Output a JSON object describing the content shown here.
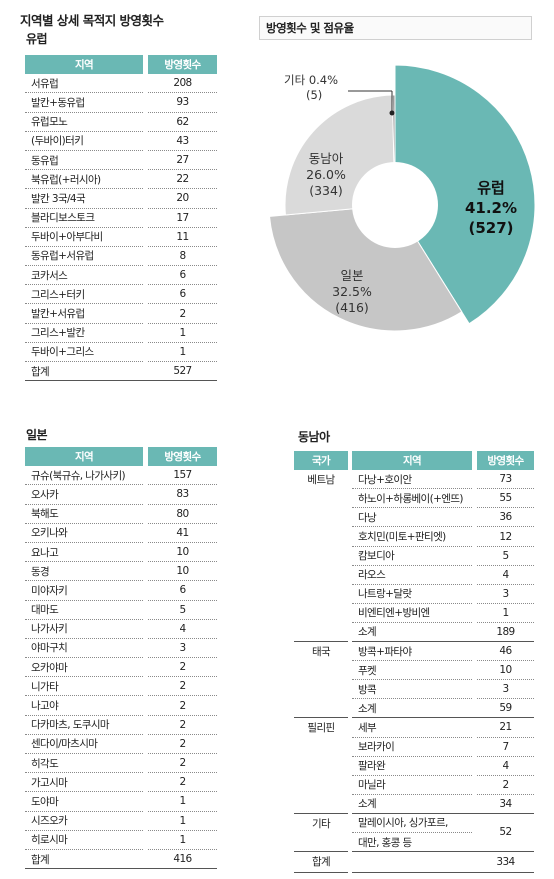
{
  "page_title": "지역별 상세 목적지 방영횟수",
  "europe": {
    "title": "유럽",
    "headers": [
      "지역",
      "방영횟수"
    ],
    "rows": [
      [
        "서유럽",
        "208"
      ],
      [
        "발칸+동유럽",
        "93"
      ],
      [
        "유럽모노",
        "62"
      ],
      [
        "(두바이)터키",
        "43"
      ],
      [
        "동유럽",
        "27"
      ],
      [
        "북유럽(+러시아)",
        "22"
      ],
      [
        "발칸 3국/4국",
        "20"
      ],
      [
        "블라디보스토크",
        "17"
      ],
      [
        "두바이+아부다비",
        "11"
      ],
      [
        "동유럽+서유럽",
        "8"
      ],
      [
        "코카서스",
        "6"
      ],
      [
        "그리스+터키",
        "6"
      ],
      [
        "발칸+서유럽",
        "2"
      ],
      [
        "그리스+발칸",
        "1"
      ],
      [
        "두바이+그리스",
        "1"
      ],
      [
        "합계",
        "527"
      ]
    ]
  },
  "chart": {
    "title": "방영횟수 및 점유율",
    "slices": [
      {
        "name": "유럽",
        "pct": "41.2%",
        "count": "(527)",
        "value": 527,
        "color": "#6ab8b4"
      },
      {
        "name": "일본",
        "pct": "32.5%",
        "count": "(416)",
        "value": 416,
        "color": "#c6c6c6"
      },
      {
        "name": "동남아",
        "pct": "26.0%",
        "count": "(334)",
        "value": 334,
        "color": "#dadada"
      },
      {
        "name": "기타",
        "pct": "0.4%",
        "count": "(5)",
        "value": 5,
        "color": "#9a9a9a"
      }
    ]
  },
  "chart_data": {
    "type": "pie",
    "title": "방영횟수 및 점유율",
    "labels": [
      "유럽",
      "일본",
      "동남아",
      "기타"
    ],
    "values": [
      527,
      416,
      334,
      5
    ],
    "percent": [
      41.2,
      32.5,
      26.0,
      0.4
    ]
  },
  "japan": {
    "title": "일본",
    "headers": [
      "지역",
      "방영횟수"
    ],
    "rows": [
      [
        "규슈(북규슈, 나가사키)",
        "157"
      ],
      [
        "오사카",
        "83"
      ],
      [
        "북해도",
        "80"
      ],
      [
        "오키나와",
        "41"
      ],
      [
        "요나고",
        "10"
      ],
      [
        "동경",
        "10"
      ],
      [
        "미야자키",
        "6"
      ],
      [
        "대마도",
        "5"
      ],
      [
        "나가사키",
        "4"
      ],
      [
        "야마구치",
        "3"
      ],
      [
        "오카야마",
        "2"
      ],
      [
        "니가타",
        "2"
      ],
      [
        "나고야",
        "2"
      ],
      [
        "다카마츠, 도쿠시마",
        "2"
      ],
      [
        "센다이/마츠시마",
        "2"
      ],
      [
        "히각도",
        "2"
      ],
      [
        "가고시마",
        "2"
      ],
      [
        "도야마",
        "1"
      ],
      [
        "시즈오카",
        "1"
      ],
      [
        "히로시마",
        "1"
      ],
      [
        "합계",
        "416"
      ]
    ]
  },
  "sea": {
    "title": "동남아",
    "headers": [
      "국가",
      "지역",
      "방영횟수"
    ],
    "rows": [
      [
        "베트남",
        "다낭+호이안",
        "73"
      ],
      [
        "",
        "하노이+하롱베이(+엔뜨)",
        "55"
      ],
      [
        "",
        "다낭",
        "36"
      ],
      [
        "",
        "호치민(미토+판티엣)",
        "12"
      ],
      [
        "",
        "캄보디아",
        "5"
      ],
      [
        "",
        "라오스",
        "4"
      ],
      [
        "",
        "나트랑+달랏",
        "3"
      ],
      [
        "",
        "비엔티엔+방비엔",
        "1"
      ],
      [
        "",
        "소계",
        "189"
      ],
      [
        "태국",
        "방콕+파타야",
        "46"
      ],
      [
        "",
        "푸켓",
        "10"
      ],
      [
        "",
        "방콕",
        "3"
      ],
      [
        "",
        "소계",
        "59"
      ],
      [
        "필리핀",
        "세부",
        "21"
      ],
      [
        "",
        "보라카이",
        "7"
      ],
      [
        "",
        "팔라완",
        "4"
      ],
      [
        "",
        "마닐라",
        "2"
      ],
      [
        "",
        "소계",
        "34"
      ],
      [
        "기타",
        "말레이시아, 싱가포르,",
        "52"
      ],
      [
        "",
        "대만, 홍콩 등",
        ""
      ],
      [
        "합계",
        "",
        "334"
      ]
    ]
  }
}
